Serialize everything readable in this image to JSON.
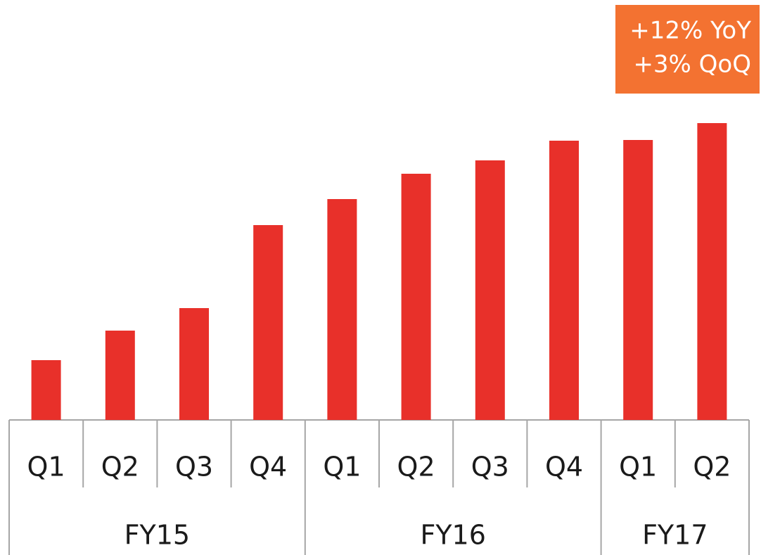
{
  "chart_data": {
    "type": "bar",
    "color": "#e8302a",
    "groups": [
      {
        "name": "FY15",
        "categories": [
          "Q1",
          "Q2",
          "Q3",
          "Q4"
        ],
        "values": [
          85,
          127,
          159,
          277
        ]
      },
      {
        "name": "FY16",
        "categories": [
          "Q1",
          "Q2",
          "Q3",
          "Q4"
        ],
        "values": [
          314,
          350,
          369,
          397
        ]
      },
      {
        "name": "FY17",
        "categories": [
          "Q1",
          "Q2"
        ],
        "values": [
          398,
          422
        ]
      }
    ],
    "annotations": [
      "+12% YoY",
      "+3% QoQ"
    ],
    "annotation_color": "#f37231"
  }
}
